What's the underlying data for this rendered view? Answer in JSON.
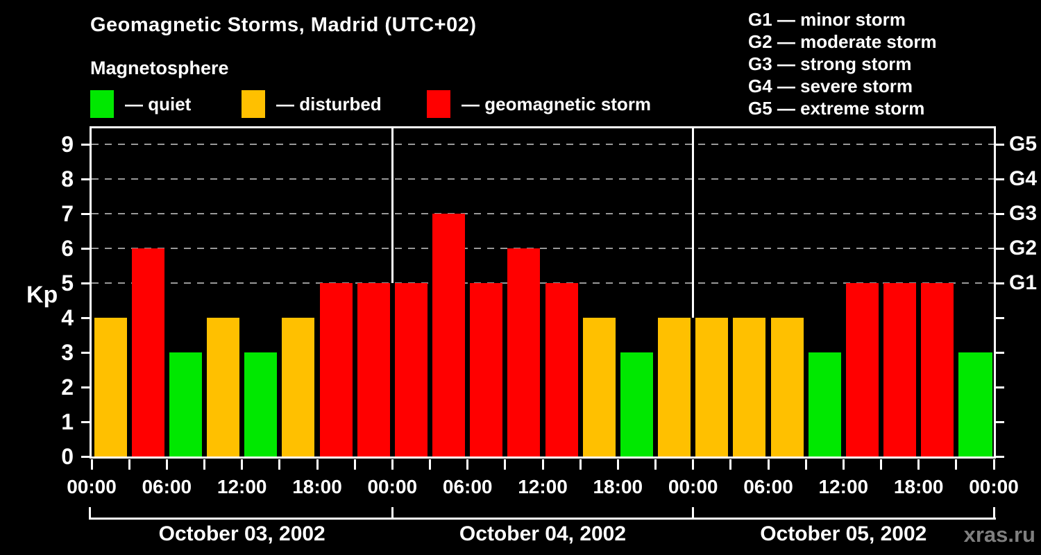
{
  "header": {
    "title": "Geomagnetic Storms, Madrid (UTC+02)",
    "subtitle": "Magnetosphere"
  },
  "legend": {
    "items": [
      {
        "name": "quiet",
        "label": "— quiet",
        "color": "#00E800"
      },
      {
        "name": "disturbed",
        "label": "— disturbed",
        "color": "#FFC000"
      },
      {
        "name": "storm",
        "label": "— geomagnetic storm",
        "color": "#FF0000"
      }
    ]
  },
  "storm_scale": {
    "items": [
      {
        "label": "G1 — minor storm"
      },
      {
        "label": "G2 — moderate storm"
      },
      {
        "label": "G3 — strong storm"
      },
      {
        "label": "G4 — severe storm"
      },
      {
        "label": "G5 — extreme storm"
      }
    ]
  },
  "watermark": "xras.ru",
  "chart_data": {
    "type": "bar",
    "title": "Geomagnetic Storms, Madrid (UTC+02)",
    "ylabel": "Kp",
    "ylim": [
      0,
      9.5
    ],
    "yticks": [
      0,
      1,
      2,
      3,
      4,
      5,
      6,
      7,
      8,
      9
    ],
    "gridline_levels": [
      5,
      6,
      7,
      8,
      9
    ],
    "grid": "dashed",
    "right_axis": [
      {
        "kp": 5,
        "label": "G1"
      },
      {
        "kp": 6,
        "label": "G2"
      },
      {
        "kp": 7,
        "label": "G3"
      },
      {
        "kp": 8,
        "label": "G4"
      },
      {
        "kp": 9,
        "label": "G5"
      }
    ],
    "xlim_hours": [
      0,
      72
    ],
    "x_total_hours": 72,
    "x_tick_interval_hours": 3,
    "x_label_interval_hours": 6,
    "x_labels": [
      "00:00",
      "06:00",
      "12:00",
      "18:00",
      "00:00",
      "06:00",
      "12:00",
      "18:00",
      "00:00",
      "06:00",
      "12:00",
      "18:00",
      "00:00"
    ],
    "days": [
      {
        "label": "October 03, 2002",
        "start_hour": 0
      },
      {
        "label": "October 04, 2002",
        "start_hour": 24
      },
      {
        "label": "October 05, 2002",
        "start_hour": 48
      }
    ],
    "colors": {
      "quiet": "#00E800",
      "disturbed": "#FFC000",
      "storm": "#FF0000"
    },
    "bars": [
      {
        "start_hour": 0,
        "kp": 4,
        "status": "disturbed"
      },
      {
        "start_hour": 3,
        "kp": 6,
        "status": "storm"
      },
      {
        "start_hour": 6,
        "kp": 3,
        "status": "quiet"
      },
      {
        "start_hour": 9,
        "kp": 4,
        "status": "disturbed"
      },
      {
        "start_hour": 12,
        "kp": 3,
        "status": "quiet"
      },
      {
        "start_hour": 15,
        "kp": 4,
        "status": "disturbed"
      },
      {
        "start_hour": 18,
        "kp": 5,
        "status": "storm"
      },
      {
        "start_hour": 21,
        "kp": 5,
        "status": "storm"
      },
      {
        "start_hour": 24,
        "kp": 5,
        "status": "storm"
      },
      {
        "start_hour": 27,
        "kp": 7,
        "status": "storm"
      },
      {
        "start_hour": 30,
        "kp": 5,
        "status": "storm"
      },
      {
        "start_hour": 33,
        "kp": 6,
        "status": "storm"
      },
      {
        "start_hour": 36,
        "kp": 5,
        "status": "storm"
      },
      {
        "start_hour": 39,
        "kp": 4,
        "status": "disturbed"
      },
      {
        "start_hour": 42,
        "kp": 3,
        "status": "quiet"
      },
      {
        "start_hour": 45,
        "kp": 4,
        "status": "disturbed"
      },
      {
        "start_hour": 48,
        "kp": 4,
        "status": "disturbed"
      },
      {
        "start_hour": 51,
        "kp": 4,
        "status": "disturbed"
      },
      {
        "start_hour": 54,
        "kp": 4,
        "status": "disturbed"
      },
      {
        "start_hour": 57,
        "kp": 3,
        "status": "quiet"
      },
      {
        "start_hour": 60,
        "kp": 5,
        "status": "storm"
      },
      {
        "start_hour": 63,
        "kp": 5,
        "status": "storm"
      },
      {
        "start_hour": 66,
        "kp": 5,
        "status": "storm"
      },
      {
        "start_hour": 69,
        "kp": 3,
        "status": "quiet"
      },
      {
        "start_hour": 72,
        "kp": 3,
        "status": "quiet",
        "clipped": true
      }
    ]
  }
}
